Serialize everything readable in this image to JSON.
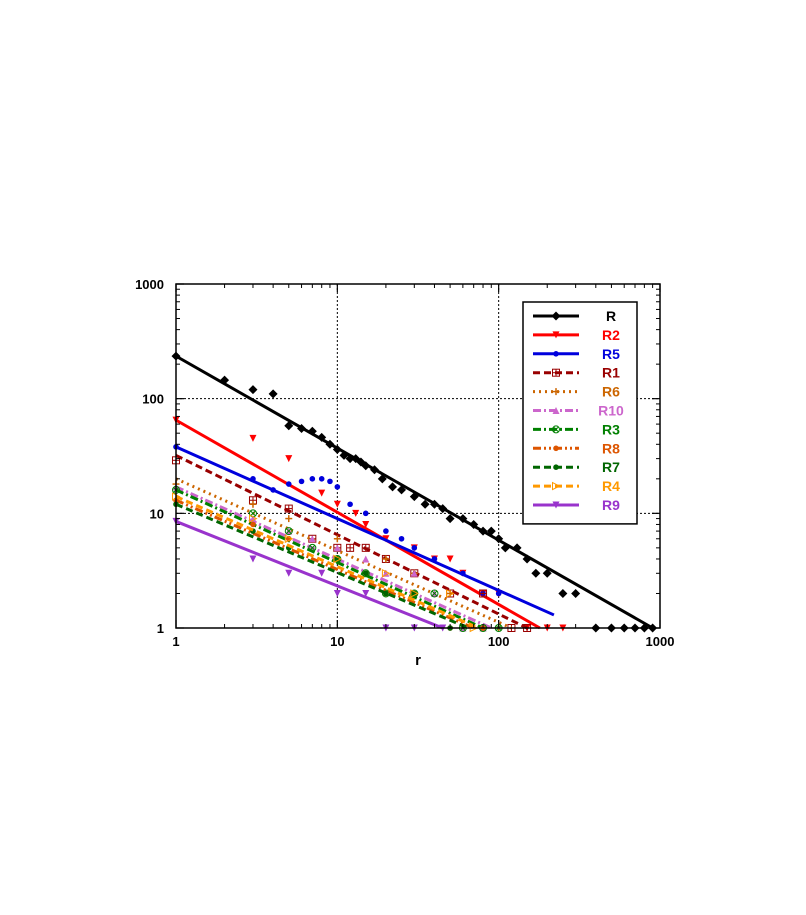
{
  "chart_data": {
    "type": "line",
    "x_scale": "log",
    "y_scale": "log",
    "xlabel": "r",
    "ylabel": "",
    "xlim": [
      1,
      1000
    ],
    "ylim": [
      1,
      1000
    ],
    "x_ticks": [
      "1",
      "10",
      "100",
      "1000"
    ],
    "y_ticks": [
      "1",
      "10",
      "100",
      "1000"
    ],
    "grid": true,
    "legend_position": "top-right",
    "series": [
      {
        "name": "R",
        "color": "#000000",
        "dash": "solid",
        "marker": "diamond",
        "fit": {
          "x": [
            1,
            900
          ],
          "y": [
            235,
            1
          ]
        },
        "points": [
          [
            1,
            235
          ],
          [
            2,
            145
          ],
          [
            3,
            120
          ],
          [
            4,
            110
          ],
          [
            5,
            58
          ],
          [
            6,
            55
          ],
          [
            7,
            52
          ],
          [
            8,
            46
          ],
          [
            9,
            40
          ],
          [
            10,
            36
          ],
          [
            11,
            32
          ],
          [
            12,
            30
          ],
          [
            13,
            30
          ],
          [
            14,
            28
          ],
          [
            15,
            26
          ],
          [
            17,
            24
          ],
          [
            19,
            20
          ],
          [
            22,
            17
          ],
          [
            25,
            16
          ],
          [
            30,
            14
          ],
          [
            35,
            12
          ],
          [
            40,
            12
          ],
          [
            45,
            11
          ],
          [
            50,
            9
          ],
          [
            60,
            9
          ],
          [
            70,
            8
          ],
          [
            80,
            7
          ],
          [
            90,
            7
          ],
          [
            100,
            6
          ],
          [
            110,
            5
          ],
          [
            130,
            5
          ],
          [
            150,
            4
          ],
          [
            170,
            3
          ],
          [
            200,
            3
          ],
          [
            250,
            2
          ],
          [
            300,
            2
          ],
          [
            400,
            1
          ],
          [
            500,
            1
          ],
          [
            600,
            1
          ],
          [
            700,
            1
          ],
          [
            800,
            1
          ],
          [
            900,
            1
          ]
        ]
      },
      {
        "name": "R2",
        "color": "#ff0000",
        "dash": "solid",
        "marker": "triangle-down",
        "fit": {
          "x": [
            1,
            180
          ],
          "y": [
            65,
            1
          ]
        },
        "points": [
          [
            1,
            65
          ],
          [
            3,
            45
          ],
          [
            5,
            30
          ],
          [
            8,
            15
          ],
          [
            10,
            12
          ],
          [
            13,
            10
          ],
          [
            15,
            8
          ],
          [
            20,
            6
          ],
          [
            30,
            5
          ],
          [
            40,
            4
          ],
          [
            50,
            4
          ],
          [
            60,
            3
          ],
          [
            80,
            2
          ],
          [
            100,
            2
          ],
          [
            150,
            1
          ],
          [
            200,
            1
          ],
          [
            250,
            1
          ]
        ]
      },
      {
        "name": "R5",
        "color": "#0000dd",
        "dash": "solid",
        "marker": "circle",
        "fit": {
          "x": [
            1,
            220
          ],
          "y": [
            38,
            1.3
          ]
        },
        "points": [
          [
            1,
            38
          ],
          [
            3,
            20
          ],
          [
            4,
            16
          ],
          [
            5,
            18
          ],
          [
            6,
            19
          ],
          [
            7,
            20
          ],
          [
            8,
            20
          ],
          [
            9,
            19
          ],
          [
            10,
            17
          ],
          [
            12,
            12
          ],
          [
            15,
            10
          ],
          [
            20,
            7
          ],
          [
            25,
            6
          ],
          [
            30,
            5
          ],
          [
            40,
            4
          ],
          [
            60,
            3
          ],
          [
            80,
            2
          ],
          [
            100,
            2
          ]
        ]
      },
      {
        "name": "R1",
        "color": "#990000",
        "dash": "dash",
        "marker": "square-cross",
        "fit": {
          "x": [
            1,
            150
          ],
          "y": [
            32,
            1
          ]
        },
        "points": [
          [
            1,
            29
          ],
          [
            3,
            13
          ],
          [
            5,
            11
          ],
          [
            7,
            6
          ],
          [
            10,
            5
          ],
          [
            12,
            5
          ],
          [
            15,
            5
          ],
          [
            20,
            4
          ],
          [
            30,
            3
          ],
          [
            50,
            2
          ],
          [
            80,
            2
          ],
          [
            120,
            1
          ],
          [
            150,
            1
          ]
        ]
      },
      {
        "name": "R6",
        "color": "#cc6600",
        "dash": "dot",
        "marker": "plus",
        "fit": {
          "x": [
            1,
            120
          ],
          "y": [
            20,
            1
          ]
        },
        "points": [
          [
            1,
            18
          ],
          [
            3,
            12
          ],
          [
            5,
            9
          ],
          [
            10,
            6
          ],
          [
            20,
            4
          ],
          [
            30,
            3
          ],
          [
            50,
            2
          ],
          [
            80,
            1
          ],
          [
            100,
            1
          ]
        ]
      },
      {
        "name": "R10",
        "color": "#cc66cc",
        "dash": "dashdot",
        "marker": "triangle-up",
        "fit": {
          "x": [
            1,
            90
          ],
          "y": [
            17,
            1
          ]
        },
        "points": [
          [
            1,
            17
          ],
          [
            3,
            9
          ],
          [
            5,
            7
          ],
          [
            7,
            6
          ],
          [
            10,
            5
          ],
          [
            15,
            4
          ],
          [
            20,
            3
          ],
          [
            30,
            3
          ],
          [
            40,
            2
          ],
          [
            60,
            1
          ],
          [
            80,
            1
          ]
        ]
      },
      {
        "name": "R3",
        "color": "#008000",
        "dash": "dashdot",
        "marker": "circle-cross",
        "fit": {
          "x": [
            1,
            80
          ],
          "y": [
            16,
            1
          ]
        },
        "points": [
          [
            1,
            16
          ],
          [
            3,
            10
          ],
          [
            5,
            7
          ],
          [
            7,
            5
          ],
          [
            10,
            4
          ],
          [
            15,
            3
          ],
          [
            20,
            2
          ],
          [
            30,
            2
          ],
          [
            40,
            2
          ],
          [
            60,
            1
          ],
          [
            80,
            1
          ],
          [
            100,
            1
          ]
        ]
      },
      {
        "name": "R8",
        "color": "#dd5500",
        "dash": "dashdotdot",
        "marker": "circle",
        "fit": {
          "x": [
            1,
            70
          ],
          "y": [
            13,
            1
          ]
        },
        "points": [
          [
            1,
            13
          ],
          [
            3,
            8
          ],
          [
            5,
            6
          ],
          [
            10,
            4
          ],
          [
            15,
            3
          ],
          [
            20,
            2
          ],
          [
            30,
            2
          ],
          [
            50,
            1
          ],
          [
            80,
            1
          ]
        ]
      },
      {
        "name": "R7",
        "color": "#006600",
        "dash": "dash",
        "marker": "circle",
        "fit": {
          "x": [
            1,
            65
          ],
          "y": [
            12,
            1
          ]
        },
        "points": [
          [
            1,
            12
          ],
          [
            3,
            7
          ],
          [
            5,
            5
          ],
          [
            10,
            4
          ],
          [
            15,
            3
          ],
          [
            20,
            2
          ],
          [
            30,
            2
          ],
          [
            50,
            1
          ]
        ]
      },
      {
        "name": "R4",
        "color": "#ff9900",
        "dash": "dash",
        "marker": "triangle-right",
        "fit": {
          "x": [
            1,
            75
          ],
          "y": [
            14,
            1
          ]
        },
        "points": [
          [
            1,
            14
          ],
          [
            3,
            9
          ],
          [
            5,
            6
          ],
          [
            10,
            4
          ],
          [
            20,
            3
          ],
          [
            30,
            2
          ],
          [
            50,
            2
          ],
          [
            70,
            1
          ]
        ]
      },
      {
        "name": "R9",
        "color": "#9933cc",
        "dash": "solid",
        "marker": "triangle-down",
        "fit": {
          "x": [
            1,
            45
          ],
          "y": [
            8.5,
            1
          ]
        },
        "points": [
          [
            1,
            8.5
          ],
          [
            3,
            4
          ],
          [
            5,
            3
          ],
          [
            8,
            3
          ],
          [
            10,
            2
          ],
          [
            15,
            2
          ],
          [
            20,
            1
          ],
          [
            30,
            1
          ],
          [
            45,
            1
          ]
        ]
      }
    ]
  }
}
